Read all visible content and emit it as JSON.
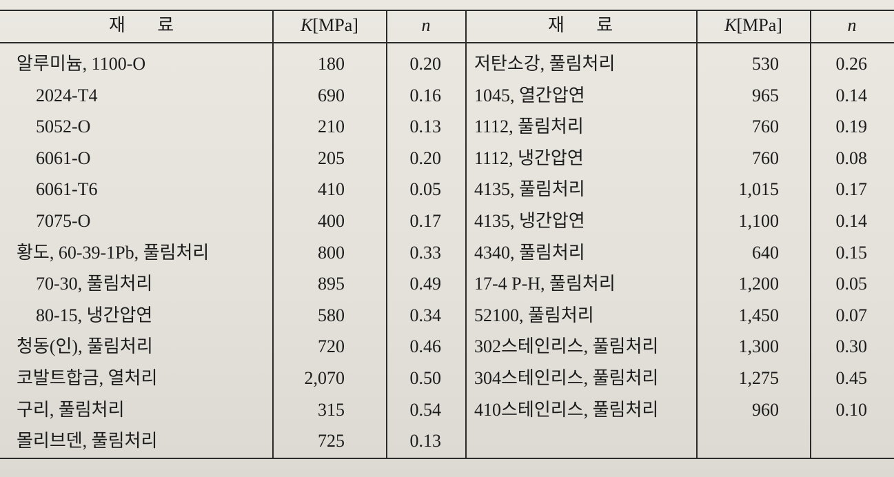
{
  "table": {
    "header": [
      {
        "text": "재 료"
      },
      {
        "symbol": "K",
        "unit": "[MPa]"
      },
      {
        "symbol": "n"
      },
      {
        "text": "재 료"
      },
      {
        "symbol": "K",
        "unit": "[MPa]"
      },
      {
        "symbol": "n"
      }
    ],
    "rows": [
      [
        "알루미늄, 1100-O",
        "180",
        "0.20",
        "저탄소강, 풀림처리",
        "530",
        "0.26"
      ],
      [
        "2024-T4",
        "690",
        "0.16",
        "1045, 열간압연",
        "965",
        "0.14"
      ],
      [
        "5052-O",
        "210",
        "0.13",
        "1112, 풀림처리",
        "760",
        "0.19"
      ],
      [
        "6061-O",
        "205",
        "0.20",
        "1112, 냉간압연",
        "760",
        "0.08"
      ],
      [
        "6061-T6",
        "410",
        "0.05",
        "4135, 풀림처리",
        "1,015",
        "0.17"
      ],
      [
        "7075-O",
        "400",
        "0.17",
        "4135, 냉간압연",
        "1,100",
        "0.14"
      ],
      [
        "황도, 60-39-1Pb, 풀림처리",
        "800",
        "0.33",
        "4340, 풀림처리",
        "640",
        "0.15"
      ],
      [
        "70-30, 풀림처리",
        "895",
        "0.49",
        "17-4 P-H, 풀림처리",
        "1,200",
        "0.05"
      ],
      [
        "80-15, 냉간압연",
        "580",
        "0.34",
        "52100, 풀림처리",
        "1,450",
        "0.07"
      ],
      [
        "청동(인), 풀림처리",
        "720",
        "0.46",
        "302스테인리스, 풀림처리",
        "1,300",
        "0.30"
      ],
      [
        "코발트합금, 열처리",
        "2,070",
        "0.50",
        "304스테인리스, 풀림처리",
        "1,275",
        "0.45"
      ],
      [
        "구리, 풀림처리",
        "315",
        "0.54",
        "410스테인리스, 풀림처리",
        "960",
        "0.10"
      ],
      [
        "몰리브덴, 풀림처리",
        "725",
        "0.13"
      ]
    ]
  }
}
